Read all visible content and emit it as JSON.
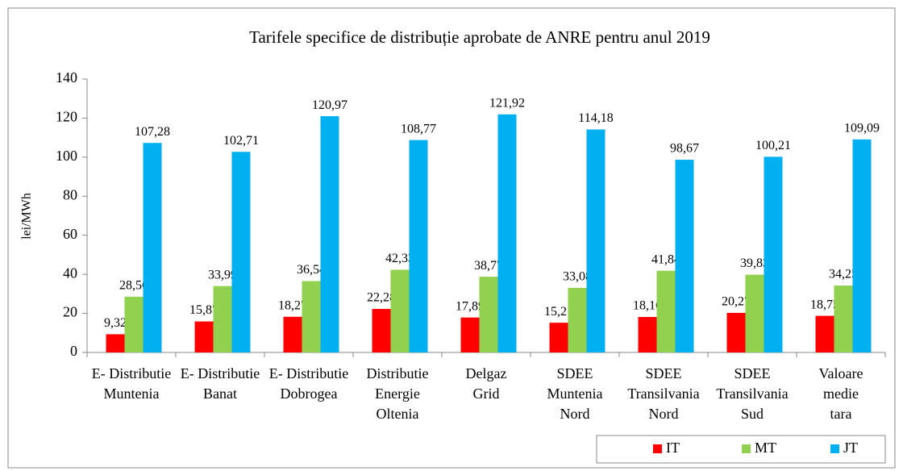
{
  "chart_data": {
    "type": "bar",
    "title": "Tarifele specifice de distribuție aprobate de ANRE pentru anul 2019",
    "y_label": "lei/MWh",
    "categories": [
      [
        "E- Distributie",
        "Muntenia"
      ],
      [
        "E- Distributie",
        "Banat"
      ],
      [
        "E- Distributie",
        "Dobrogea"
      ],
      [
        "Distributie",
        "Energie",
        "Oltenia"
      ],
      [
        "Delgaz",
        "Grid"
      ],
      [
        "SDEE",
        "Muntenia",
        "Nord"
      ],
      [
        "SDEE",
        "Transilvania",
        "Nord"
      ],
      [
        "SDEE",
        "Transilvania",
        "Sud"
      ],
      [
        "Valoare",
        "medie",
        "tara"
      ]
    ],
    "series": [
      {
        "name": "IT",
        "color": "#ff0000",
        "values": [
          9.32,
          15.87,
          18.27,
          22.28,
          17.89,
          15.21,
          18.16,
          20.27,
          18.75
        ],
        "value_labels": [
          "9,32",
          "15,87",
          "18,27",
          "22,28",
          "17,89",
          "15,21",
          "18,16",
          "20,27",
          "18,75"
        ]
      },
      {
        "name": "MT",
        "color": "#92d050",
        "values": [
          28.56,
          33.99,
          36.54,
          42.33,
          38.77,
          33.08,
          41.84,
          39.83,
          34.25
        ],
        "value_labels": [
          "28,56",
          "33,99",
          "36,54",
          "42,33",
          "38,77",
          "33,08",
          "41,84",
          "39,83",
          "34,25"
        ]
      },
      {
        "name": "JT",
        "color": "#00b0f0",
        "values": [
          107.28,
          102.71,
          120.97,
          108.77,
          121.92,
          114.18,
          98.67,
          100.21,
          109.09
        ],
        "value_labels": [
          "107,28",
          "102,71",
          "120,97",
          "108,77",
          "121,92",
          "114,18",
          "98,67",
          "100,21",
          "109,09"
        ]
      }
    ],
    "ylim": [
      0,
      140
    ],
    "yticks": [
      0,
      20,
      40,
      60,
      80,
      100,
      120,
      140
    ],
    "grid": false,
    "legend": "bottom-right"
  }
}
